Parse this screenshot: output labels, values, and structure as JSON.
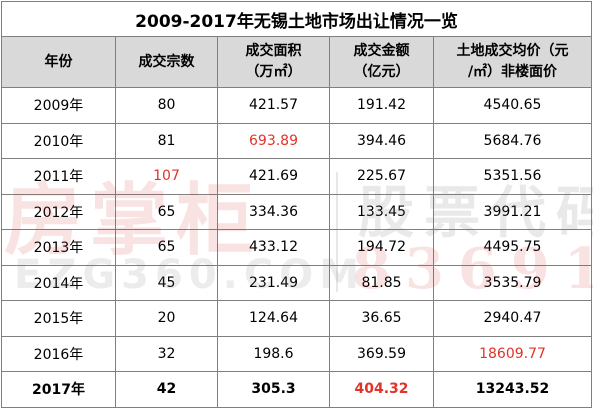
{
  "table": {
    "title": "2009-2017年无锡土地市场出让情况一览",
    "headers": [
      {
        "line1": "年份",
        "line2": ""
      },
      {
        "line1": "成交宗数",
        "line2": ""
      },
      {
        "line1": "成交面积",
        "line2": "（万㎡）"
      },
      {
        "line1": "成交金额",
        "line2": "（亿元）"
      },
      {
        "line1": "土地成交均价（元",
        "line2": "/㎡）非楼面价"
      }
    ],
    "rows": [
      {
        "year": "2009年",
        "count": "80",
        "area": "421.57",
        "amount": "191.42",
        "price": "4540.65"
      },
      {
        "year": "2010年",
        "count": "81",
        "area": "693.89",
        "amount": "394.46",
        "price": "5684.76"
      },
      {
        "year": "2011年",
        "count": "107",
        "area": "421.69",
        "amount": "225.67",
        "price": "5351.56"
      },
      {
        "year": "2012年",
        "count": "65",
        "area": "334.36",
        "amount": "133.45",
        "price": "3991.21"
      },
      {
        "year": "2013年",
        "count": "65",
        "area": "433.12",
        "amount": "194.72",
        "price": "4495.75"
      },
      {
        "year": "2014年",
        "count": "45",
        "area": "231.49",
        "amount": "81.85",
        "price": "3535.79"
      },
      {
        "year": "2015年",
        "count": "20",
        "area": "124.64",
        "amount": "36.65",
        "price": "2940.47"
      },
      {
        "year": "2016年",
        "count": "32",
        "area": "198.6",
        "amount": "369.59",
        "price": "18609.77"
      },
      {
        "year": "2017年",
        "count": "42",
        "area": "305.3",
        "amount": "404.32",
        "price": "13243.52"
      }
    ]
  },
  "watermark": {
    "brand": "房掌柜",
    "stock_label": "股票代码",
    "domain": "EZG360.COM",
    "code": "836918"
  },
  "colors": {
    "highlight": "#e0332a",
    "header_bg": "#d9d9d9",
    "border": "#7f7f7f"
  }
}
